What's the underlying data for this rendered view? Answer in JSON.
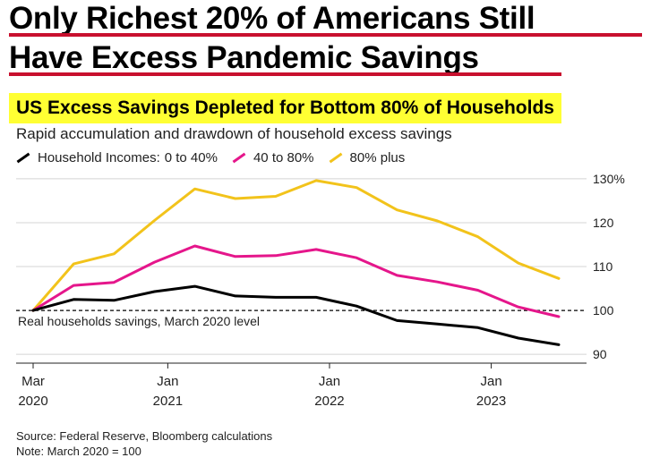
{
  "headline": {
    "line1": "Only Richest 20% of Americans Still",
    "line2": "Have Excess Pandemic Savings"
  },
  "chart_data": {
    "type": "line",
    "title": "US Excess Savings Depleted for Bottom 80% of Households",
    "subtitle": "Rapid accumulation and drawdown of household excess savings",
    "legend_title": "Household Incomes:",
    "x": [
      "2020-03",
      "2020-06",
      "2020-09",
      "2020-12",
      "2021-03",
      "2021-06",
      "2021-09",
      "2021-12",
      "2022-03",
      "2022-06",
      "2022-09",
      "2022-12",
      "2023-03",
      "2023-06"
    ],
    "series": [
      {
        "name": "0 to 40%",
        "color": "#000000",
        "values": [
          100,
          102.5,
          102.3,
          104.3,
          105.5,
          103.3,
          103.0,
          103.0,
          101.0,
          97.7,
          96.9,
          96.1,
          93.7,
          92.2
        ]
      },
      {
        "name": "40 to 80%",
        "color": "#e5168b",
        "values": [
          100,
          105.7,
          106.4,
          111.0,
          114.7,
          112.3,
          112.5,
          113.9,
          112.0,
          108.0,
          106.5,
          104.6,
          100.8,
          98.6
        ]
      },
      {
        "name": "80% plus",
        "color": "#f2c31b",
        "values": [
          100,
          110.6,
          112.9,
          120.5,
          127.7,
          125.5,
          126.0,
          129.6,
          128.0,
          122.9,
          120.4,
          116.8,
          110.8,
          107.3
        ]
      }
    ],
    "ylim": [
      88,
      131
    ],
    "yticks": [
      "90",
      "100",
      "110",
      "120",
      "130%"
    ],
    "ytick_values": [
      90,
      100,
      110,
      120,
      130
    ],
    "xticks": [
      {
        "top": "Mar",
        "bottom": "2020",
        "index": 0
      },
      {
        "top": "Jan",
        "bottom": "2021",
        "index": 3.33
      },
      {
        "top": "Jan",
        "bottom": "2022",
        "index": 7.33
      },
      {
        "top": "Jan",
        "bottom": "2023",
        "index": 11.33
      }
    ],
    "reference": {
      "value": 100,
      "label": "Real households savings, March 2020 level"
    },
    "grid": true,
    "xlabel": "",
    "ylabel": ""
  },
  "footer": {
    "source": "Source: Federal Reserve, Bloomberg calculations",
    "note": "Note: March 2020 = 100"
  },
  "colors": {
    "accent_underline": "#c8102e",
    "title_highlight": "#ffff33"
  }
}
